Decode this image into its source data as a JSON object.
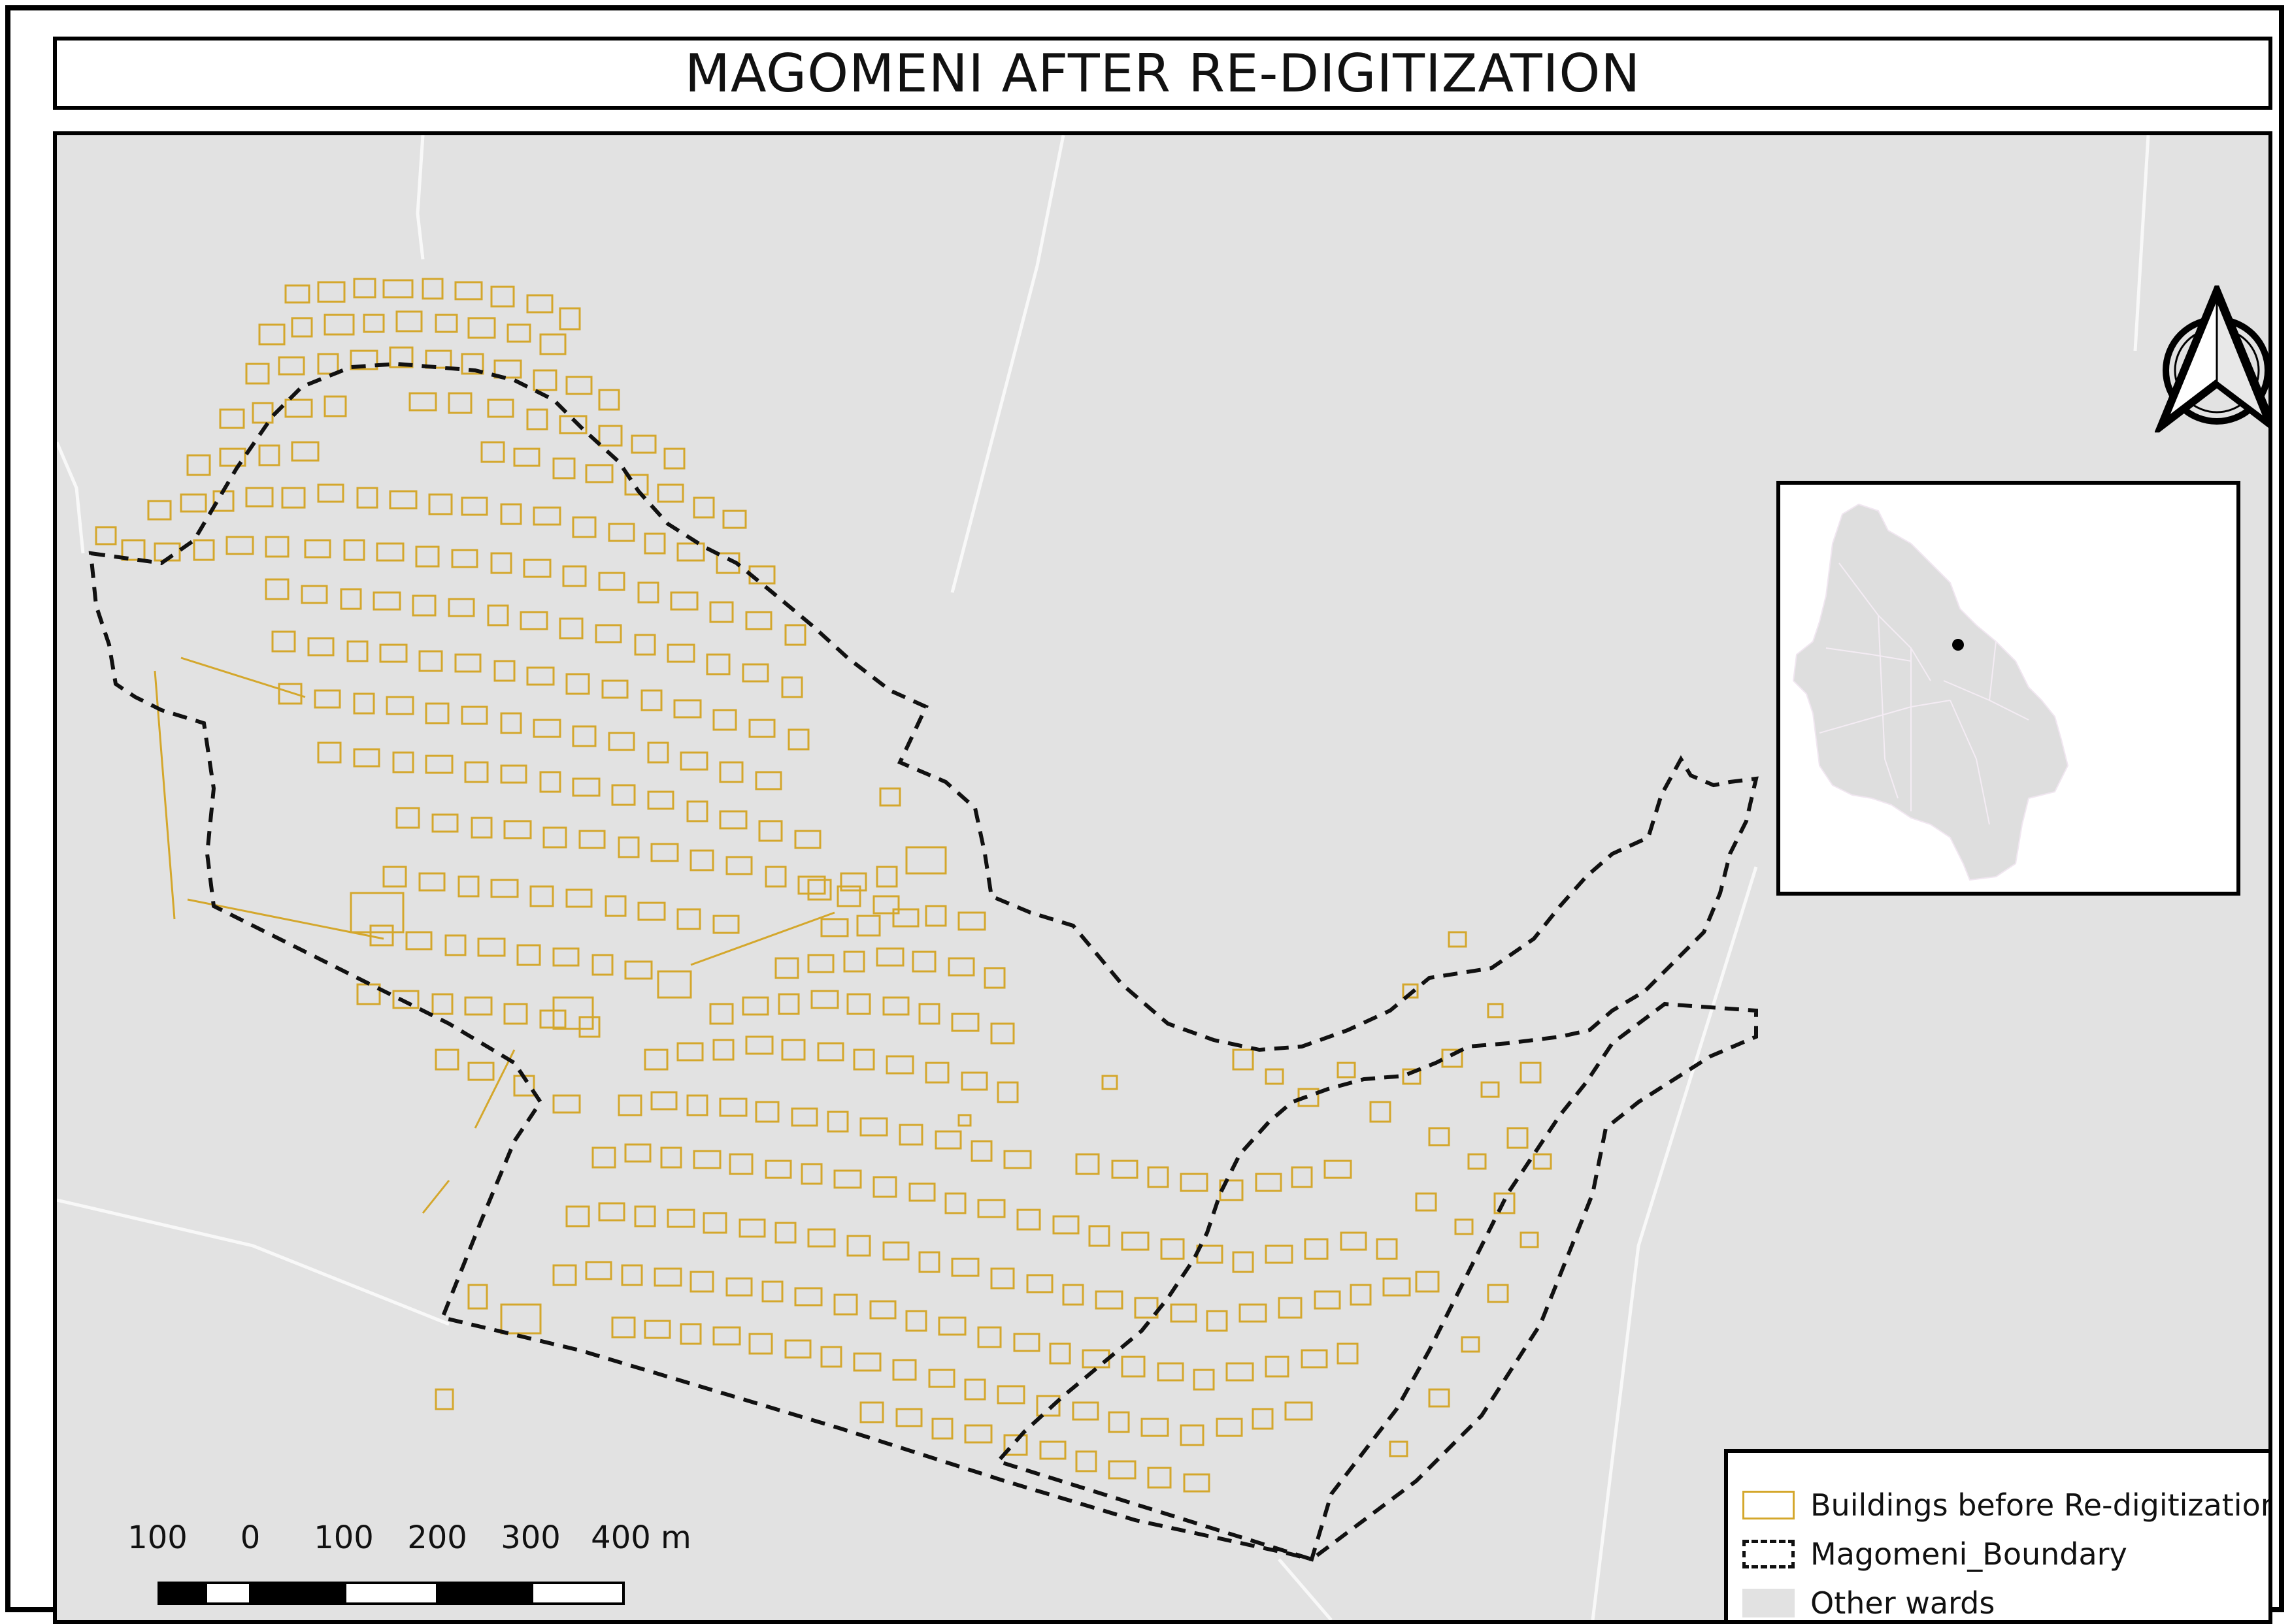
{
  "title": "MAGOMENI AFTER RE-DIGITIZATION",
  "legend": {
    "buildings_label": "Buildings before Re-digitization",
    "boundary_label": "Magomeni_Boundary",
    "wards_label": "Other wards"
  },
  "scalebar": {
    "labels": [
      "100",
      "0",
      "100",
      "200",
      "300",
      "400 m"
    ]
  },
  "north_arrow": {
    "icon": "north-arrow-icon"
  },
  "colors": {
    "buildings": "#d4a72c",
    "boundary": "#111111",
    "other_wards": "#e2e2e2",
    "roads": "#f7f7f7",
    "inset_region": "#dedede",
    "location_marker": "#000000"
  }
}
